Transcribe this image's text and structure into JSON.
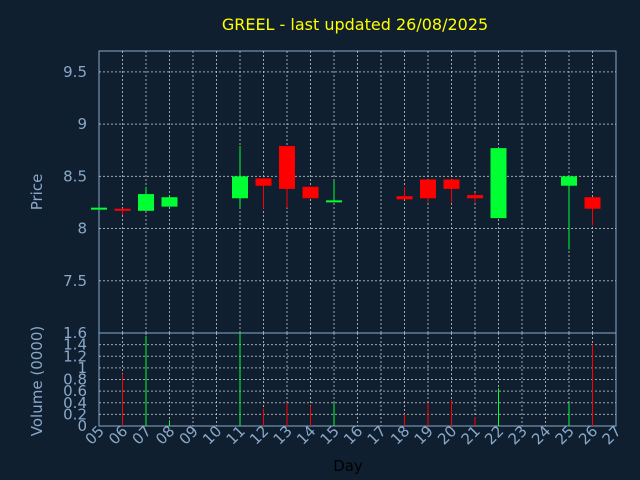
{
  "chart_data": {
    "type": "candlestick",
    "title": "GREEL - last updated 26/08/2025",
    "xlabel": "Day",
    "price_ylabel": "Price",
    "volume_ylabel": "Volume (0000)",
    "price_ylim": [
      7.0,
      9.7
    ],
    "price_ticks": [
      "7.5",
      "8",
      "8.5",
      "9",
      "9.5"
    ],
    "price_tick_values": [
      7.5,
      8,
      8.5,
      9,
      9.5
    ],
    "volume_ylim": [
      0,
      1.6
    ],
    "volume_ticks": [
      "0",
      "0.2",
      "0.4",
      "0.6",
      "0.8",
      "1",
      "1.2",
      "1.4",
      "1.6"
    ],
    "volume_tick_values": [
      0,
      0.2,
      0.4,
      0.6,
      0.8,
      1.0,
      1.2,
      1.4,
      1.6
    ],
    "x_ticks": [
      "05",
      "06",
      "07",
      "08",
      "09",
      "10",
      "11",
      "12",
      "13",
      "14",
      "15",
      "16",
      "17",
      "18",
      "19",
      "20",
      "21",
      "22",
      "23",
      "24",
      "25",
      "26",
      "27"
    ],
    "x_range": [
      5,
      27
    ],
    "candles": [
      {
        "day": 5,
        "open": 8.2,
        "high": 8.21,
        "low": 8.19,
        "close": 8.2,
        "volume": 0.0
      },
      {
        "day": 6,
        "open": 8.19,
        "high": 8.19,
        "low": 8.13,
        "close": 8.17,
        "volume": 0.9
      },
      {
        "day": 7,
        "open": 8.17,
        "high": 8.4,
        "low": 8.17,
        "close": 8.33,
        "volume": 1.55
      },
      {
        "day": 8,
        "open": 8.21,
        "high": 8.31,
        "low": 8.21,
        "close": 8.3,
        "volume": 0.1
      },
      {
        "day": 11,
        "open": 8.29,
        "high": 8.79,
        "low": 8.2,
        "close": 8.5,
        "volume": 1.6
      },
      {
        "day": 12,
        "open": 8.48,
        "high": 8.48,
        "low": 8.19,
        "close": 8.41,
        "volume": 0.3
      },
      {
        "day": 13,
        "open": 8.79,
        "high": 8.79,
        "low": 8.2,
        "close": 8.38,
        "volume": 0.4
      },
      {
        "day": 14,
        "open": 8.4,
        "high": 8.4,
        "low": 8.29,
        "close": 8.29,
        "volume": 0.35
      },
      {
        "day": 15,
        "open": 8.26,
        "high": 8.46,
        "low": 8.26,
        "close": 8.27,
        "volume": 0.4
      },
      {
        "day": 18,
        "open": 8.31,
        "high": 8.4,
        "low": 8.28,
        "close": 8.28,
        "volume": 0.2
      },
      {
        "day": 19,
        "open": 8.47,
        "high": 8.47,
        "low": 8.25,
        "close": 8.29,
        "volume": 0.4
      },
      {
        "day": 20,
        "open": 8.47,
        "high": 8.47,
        "low": 8.25,
        "close": 8.38,
        "volume": 0.45
      },
      {
        "day": 21,
        "open": 8.32,
        "high": 8.34,
        "low": 8.25,
        "close": 8.29,
        "volume": 0.15
      },
      {
        "day": 22,
        "open": 8.1,
        "high": 8.77,
        "low": 8.1,
        "close": 8.77,
        "volume": 0.65
      },
      {
        "day": 25,
        "open": 8.41,
        "high": 8.5,
        "low": 7.8,
        "close": 8.5,
        "volume": 0.4
      },
      {
        "day": 26,
        "open": 8.3,
        "high": 8.3,
        "low": 8.03,
        "close": 8.19,
        "volume": 1.4
      }
    ],
    "colors": {
      "background": "#0f1f2f",
      "up": "#00ff33",
      "down": "#ff0000",
      "title": "#ffff00",
      "axis_text": "#8aa8c8",
      "grid": "#c8c8c8",
      "frame": "#8aa8c8"
    },
    "grid": true
  }
}
